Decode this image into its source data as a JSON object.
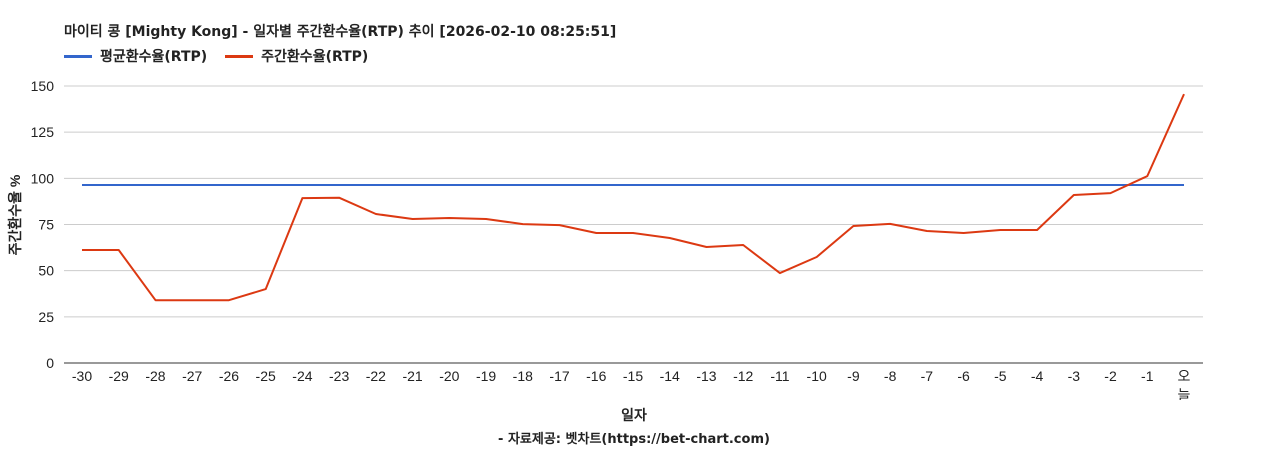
{
  "header": {
    "title": "마이티 콩 [Mighty Kong] - 일자별 주간환수율(RTP) 추이 [2026-02-10 08:25:51]"
  },
  "legend": [
    {
      "label": "평균환수율(RTP)",
      "color": "#3366cc"
    },
    {
      "label": "주간환수율(RTP)",
      "color": "#dc3912"
    }
  ],
  "axes": {
    "ylabel": "주간환수율 %",
    "xlabel": "일자",
    "yticks": [
      "0",
      "25",
      "50",
      "75",
      "100",
      "125",
      "150"
    ]
  },
  "footer": {
    "source": "- 자료제공: 벳차트(https://bet-chart.com)"
  },
  "chart_data": {
    "type": "line",
    "title": "마이티 콩 [Mighty Kong] - 일자별 주간환수율(RTP) 추이 [2026-02-10 08:25:51]",
    "xlabel": "일자",
    "ylabel": "주간환수율 %",
    "ylim": [
      0,
      150
    ],
    "yticks": [
      0,
      25,
      50,
      75,
      100,
      125,
      150
    ],
    "grid": true,
    "legend_position": "top",
    "categories": [
      "-30",
      "-29",
      "-28",
      "-27",
      "-26",
      "-25",
      "-24",
      "-23",
      "-22",
      "-21",
      "-20",
      "-19",
      "-18",
      "-17",
      "-16",
      "-15",
      "-14",
      "-13",
      "-12",
      "-11",
      "-10",
      "-9",
      "-8",
      "-7",
      "-6",
      "-5",
      "-4",
      "-3",
      "-2",
      "-1",
      "오늘"
    ],
    "series": [
      {
        "name": "평균환수율(RTP)",
        "color": "#3366cc",
        "values": [
          96.4,
          96.4,
          96.4,
          96.4,
          96.4,
          96.4,
          96.4,
          96.4,
          96.4,
          96.4,
          96.4,
          96.4,
          96.4,
          96.4,
          96.4,
          96.4,
          96.4,
          96.4,
          96.4,
          96.4,
          96.4,
          96.4,
          96.4,
          96.4,
          96.4,
          96.4,
          96.4,
          96.4,
          96.4,
          96.4,
          96.4
        ]
      },
      {
        "name": "주간환수율(RTP)",
        "color": "#dc3912",
        "values": [
          61.2,
          61.2,
          34.0,
          34.0,
          34.0,
          40.0,
          89.3,
          89.5,
          80.7,
          78.0,
          78.5,
          78.0,
          75.2,
          74.7,
          70.4,
          70.4,
          67.7,
          62.8,
          63.9,
          48.7,
          57.4,
          74.2,
          75.3,
          71.5,
          70.4,
          72.0,
          72.0,
          91.0,
          92.0,
          101.2,
          145.6
        ]
      }
    ],
    "source": "- 자료제공: 벳차트(https://bet-chart.com)"
  }
}
